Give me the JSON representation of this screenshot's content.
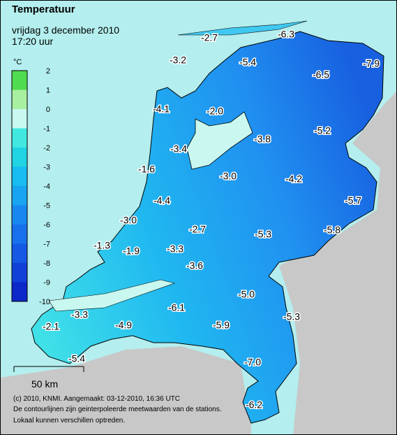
{
  "header": {
    "title": "Temperatuur",
    "date": "vrijdag 3 december 2010",
    "time": "17:20 uur"
  },
  "legend": {
    "unit": "°C",
    "labels": [
      2,
      1,
      0,
      -1,
      -2,
      -3,
      -4,
      -5,
      -6,
      -7,
      -8,
      -9,
      -10
    ],
    "colors": [
      "#50dc50",
      "#a8f0a0",
      "#c8f8f0",
      "#40e8e0",
      "#20d4e4",
      "#18bcf0",
      "#18a4f0",
      "#1888f0",
      "#1870ec",
      "#1458e4",
      "#1040d8",
      "#0c28c8"
    ]
  },
  "stations": [
    "-2.7",
    "-6.3",
    "-3.2",
    "-5.4",
    "-6.5",
    "-7.9",
    "-4.1",
    "-2.0",
    "-5.2",
    "-3.8",
    "-3.4",
    "-1.6",
    "-3.0",
    "-4.2",
    "-4.4",
    "-5.7",
    "-3.0",
    "-2.7",
    "-5.8",
    "-5.3",
    "-1.3",
    "-1.9",
    "-3.3",
    "-3.6",
    "-5.0",
    "-6.1",
    "-3.3",
    "-5.3",
    "-2.1",
    "-4.9",
    "-5.9",
    "-5.4",
    "-7.0",
    "-6.2"
  ],
  "scale_bar": "50 km",
  "footer": [
    "(c) 2010, KNMI. Aangemaakt: 03-12-2010, 16:36 UTC",
    "De contourlijnen zijn geinterpoleerde meetwaarden van de stations.",
    "Lokaal kunnen verschillen optreden."
  ]
}
